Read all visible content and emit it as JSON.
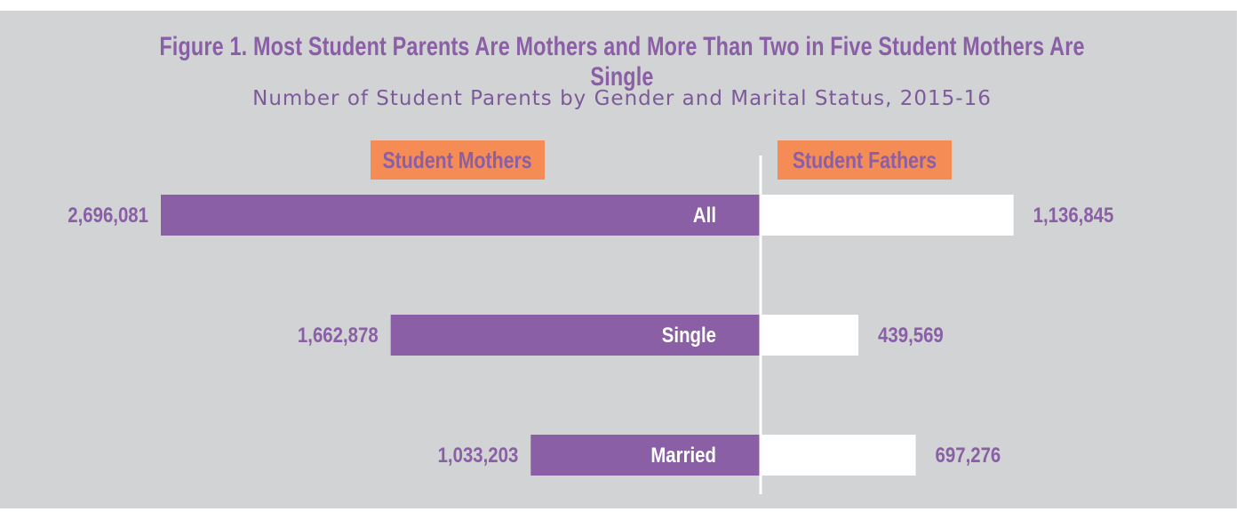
{
  "colors": {
    "background": "#d1d3d4",
    "mothers_bar": "#8a5fa6",
    "fathers_bar": "#ffffff",
    "header_box": "#f58b55",
    "text_purple": "#8a5fa6",
    "axis": "#ffffff"
  },
  "chart_data": {
    "type": "bar",
    "orientation": "horizontal-diverging",
    "title": "Figure 1. Most Student Parents Are Mothers and More Than Two in Five Student Mothers Are Single",
    "subtitle": "Number of Student Parents by Gender and Marital Status, 2015-16",
    "categories": [
      "All",
      "Single",
      "Married"
    ],
    "series": [
      {
        "name": "Student Mothers",
        "side": "left",
        "values": [
          2696081,
          1662878,
          1033203
        ],
        "labels": [
          "2,696,081",
          "1,662,878",
          "1,033,203"
        ]
      },
      {
        "name": "Student Fathers",
        "side": "right",
        "values": [
          1136845,
          439569,
          697276
        ],
        "labels": [
          "1,136,845",
          "439,569",
          "697,276"
        ]
      }
    ],
    "grid": false,
    "legend": "header boxes above each side"
  }
}
